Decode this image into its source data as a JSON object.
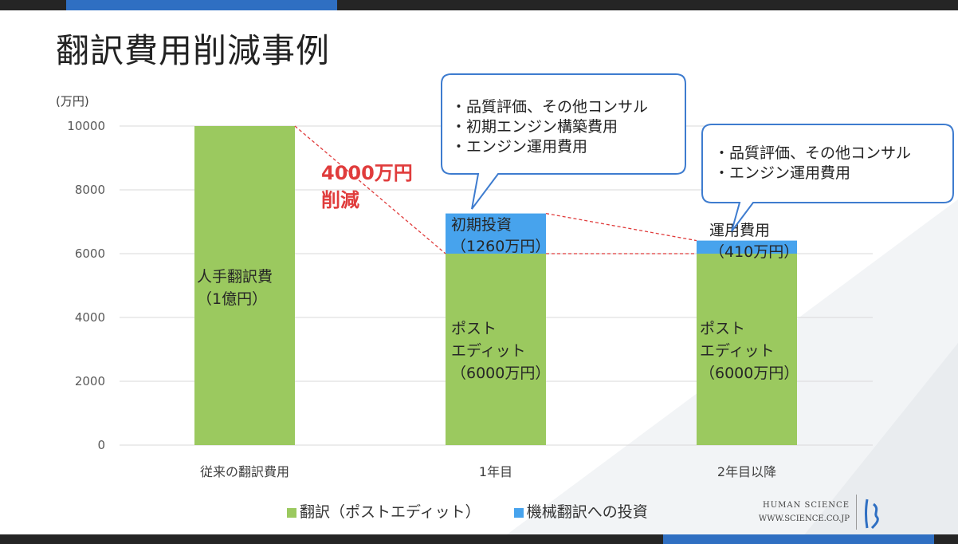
{
  "title": "翻訳費用削減事例",
  "colors": {
    "translation": "#9bc95f",
    "mt_investment": "#47a3ed",
    "annotation": "#e03c3c",
    "callout_border": "#3e7ccf"
  },
  "chart_data": {
    "type": "bar",
    "stacked": true,
    "ylabel": "(万円)",
    "ylim": [
      0,
      10000
    ],
    "yticks": [
      "0",
      "2000",
      "4000",
      "6000",
      "8000",
      "10000"
    ],
    "categories": [
      "従来の翻訳費用",
      "1年目",
      "2年目以降"
    ],
    "series": [
      {
        "name": "翻訳（ポストエディット）",
        "color": "#9bc95f",
        "values": [
          10000,
          6000,
          6000
        ]
      },
      {
        "name": "機械翻訳への投資",
        "color": "#47a3ed",
        "values": [
          0,
          1260,
          410
        ]
      }
    ],
    "bar_labels": {
      "bar1": {
        "line1": "人手翻訳費",
        "line2": "（1億円）"
      },
      "bar2_base": {
        "line1": "ポスト",
        "line2": "エディット",
        "line3": "（6000万円）"
      },
      "bar2_top": {
        "line1": "初期投資",
        "line2": "（1260万円）"
      },
      "bar3_base": {
        "line1": "ポスト",
        "line2": "エディット",
        "line3": "（6000万円）"
      },
      "bar3_top": {
        "line1": "運用費用",
        "line2": "（410万円）"
      }
    },
    "annotation": {
      "line1": "4000万円",
      "line2": "削減"
    },
    "legend_position": "bottom",
    "grid": true
  },
  "callouts": [
    {
      "lines": [
        "・品質評価、その他コンサル",
        "・初期エンジン構築費用",
        "・エンジン運用費用"
      ]
    },
    {
      "lines": [
        "・品質評価、その他コンサル",
        "・エンジン運用費用"
      ]
    }
  ],
  "brand": {
    "name": "HUMAN SCIENCE",
    "url": "WWW.SCIENCE.CO.JP"
  }
}
